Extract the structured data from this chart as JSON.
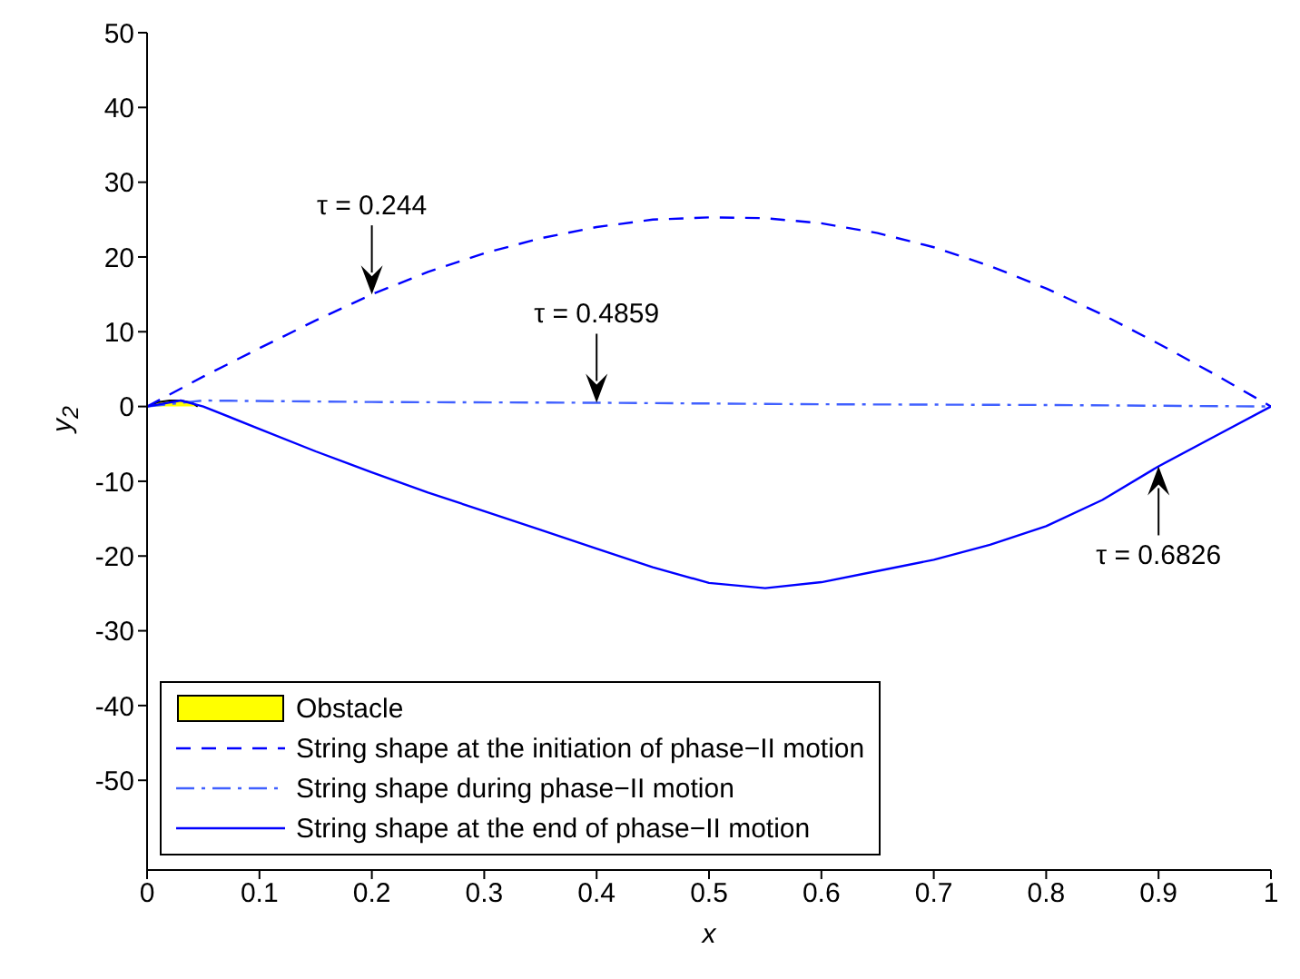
{
  "chart_data": {
    "type": "line",
    "xlabel": "x",
    "ylabel": "y$_{2}$",
    "xlim": [
      0,
      1
    ],
    "xticks": [
      0,
      0.1,
      0.2,
      0.3,
      0.4,
      0.5,
      0.6,
      0.7,
      0.8,
      0.9,
      1
    ],
    "ylim": [
      -62,
      50
    ],
    "yticks": [
      -50,
      -40,
      -30,
      -20,
      -10,
      0,
      10,
      20,
      30,
      40,
      50
    ],
    "grid": false,
    "legend": "bottom left",
    "marker": "none",
    "series": [
      {
        "name": "Obstacle",
        "type": "area",
        "color": "#ffff00",
        "x": [
          0,
          0.01,
          0.02,
          0.03,
          0.04,
          0.045
        ],
        "values": [
          0,
          0.6,
          0.8,
          0.8,
          0.5,
          0
        ]
      },
      {
        "name": "String shape at the initiation of phase−II motion",
        "line_style": "dashed",
        "color": "#0000ff",
        "x": [
          0,
          0.05,
          0.1,
          0.15,
          0.2,
          0.25,
          0.3,
          0.35,
          0.4,
          0.45,
          0.5,
          0.55,
          0.6,
          0.65,
          0.7,
          0.75,
          0.8,
          0.85,
          0.9,
          0.95,
          1
        ],
        "values": [
          0,
          4,
          7.8,
          11.5,
          15,
          18,
          20.5,
          22.5,
          24,
          25,
          25.3,
          25.2,
          24.5,
          23.2,
          21.3,
          18.8,
          15.8,
          12.3,
          8.4,
          4.3,
          0
        ]
      },
      {
        "name": "String shape during phase−II motion",
        "line_style": "dashdot",
        "color": "#4060ff",
        "x": [
          0,
          0.05,
          0.2,
          0.4,
          0.6,
          0.8,
          1
        ],
        "values": [
          0,
          0.8,
          0.6,
          0.5,
          0.3,
          0.2,
          0
        ]
      },
      {
        "name": "String shape at the end of phase−II motion",
        "line_style": "solid",
        "color": "#0000ff",
        "x": [
          0,
          0.03,
          0.05,
          0.1,
          0.15,
          0.2,
          0.25,
          0.3,
          0.35,
          0.4,
          0.45,
          0.5,
          0.55,
          0.6,
          0.65,
          0.7,
          0.75,
          0.8,
          0.85,
          0.9,
          0.95,
          1
        ],
        "values": [
          0,
          0.8,
          0,
          -3,
          -6,
          -8.8,
          -11.5,
          -14,
          -16.5,
          -19,
          -21.5,
          -23.6,
          -24.3,
          -23.5,
          -22,
          -20.5,
          -18.5,
          -16,
          -12.5,
          -8,
          -4,
          0
        ]
      }
    ],
    "annotations": [
      {
        "text": "τ = 0.244",
        "x": 0.2,
        "y": 15
      },
      {
        "text": "τ = 0.4859",
        "x": 0.4,
        "y": 0.5
      },
      {
        "text": "τ = 0.6826",
        "x": 0.9,
        "y": -8
      }
    ]
  }
}
